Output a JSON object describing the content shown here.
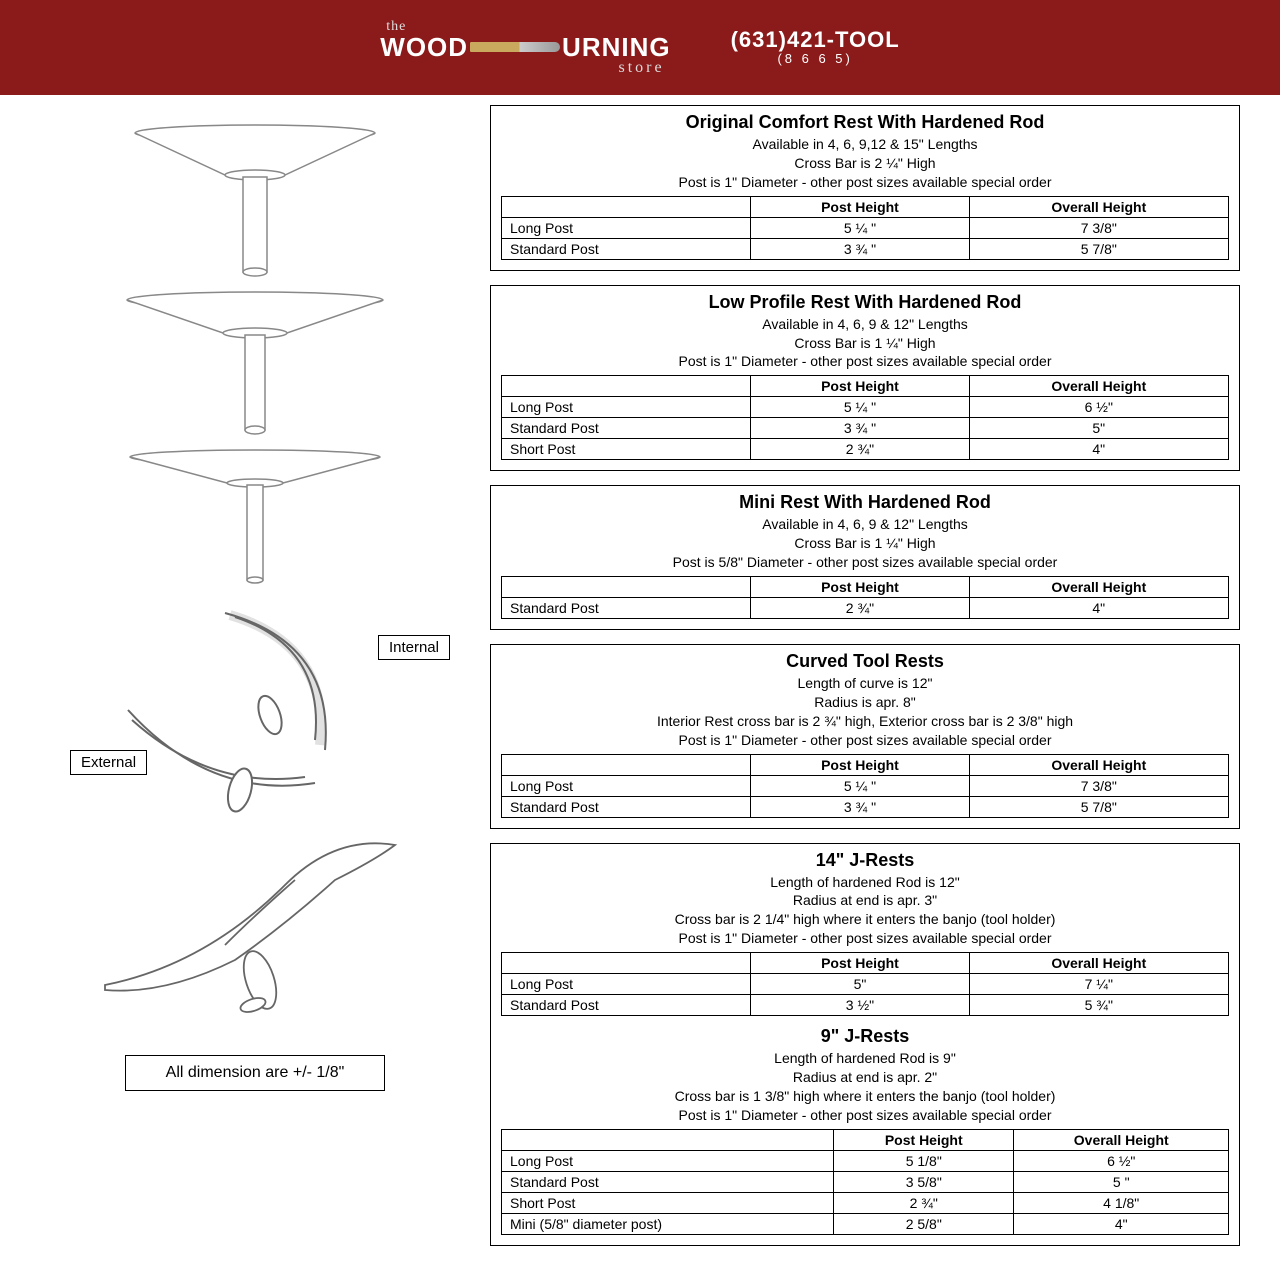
{
  "header": {
    "logo_the": "the",
    "logo_word1": "WOOD",
    "logo_word2": "URNING",
    "logo_store": "store",
    "phone": "(631)421-TOOL",
    "phone_sub": "(8 6 6 5)",
    "bg_color": "#8b1a1a"
  },
  "left": {
    "internal_label": "Internal",
    "external_label": "External",
    "dims_note": "All dimension are +/- 1/8\""
  },
  "boxes": [
    {
      "title": "Original Comfort Rest With Hardened Rod",
      "subs": [
        "Available in 4, 6, 9,12 & 15\" Lengths",
        "Cross Bar is 2 ¼\" High",
        "Post is 1\" Diameter - other post sizes available special order"
      ],
      "cols": [
        "",
        "Post Height",
        "Overall Height"
      ],
      "rows": [
        [
          "Long Post",
          "5 ¼ \"",
          "7 3/8\""
        ],
        [
          "Standard Post",
          "3 ¾ \"",
          "5 7/8\""
        ]
      ]
    },
    {
      "title": "Low Profile Rest With Hardened Rod",
      "subs": [
        "Available in 4, 6, 9 & 12\" Lengths",
        "Cross Bar is 1 ¼\" High",
        "Post is 1\" Diameter - other post sizes available special order"
      ],
      "cols": [
        "",
        "Post Height",
        "Overall Height"
      ],
      "rows": [
        [
          "Long Post",
          "5 ¼ \"",
          "6 ½\""
        ],
        [
          "Standard Post",
          "3 ¾ \"",
          "5\""
        ],
        [
          "Short Post",
          "2 ¾\"",
          "4\""
        ]
      ]
    },
    {
      "title": "Mini Rest With Hardened Rod",
      "subs": [
        "Available in 4, 6, 9 & 12\" Lengths",
        "Cross Bar is 1 ¼\" High",
        "Post is 5/8\" Diameter - other post sizes available special order"
      ],
      "cols": [
        "",
        "Post Height",
        "Overall Height"
      ],
      "rows": [
        [
          "Standard Post",
          "2 ¾\"",
          "4\""
        ]
      ]
    },
    {
      "title": "Curved Tool Rests",
      "subs": [
        "Length of curve is 12\"",
        "Radius is apr. 8\"",
        "Interior Rest cross bar is 2 ¾\" high, Exterior cross bar is 2 3/8\" high",
        "Post is 1\" Diameter - other post sizes available special order"
      ],
      "cols": [
        "",
        "Post Height",
        "Overall Height"
      ],
      "rows": [
        [
          "Long Post",
          "5 ¼ \"",
          "7 3/8\""
        ],
        [
          "Standard Post",
          "3 ¾ \"",
          "5 7/8\""
        ]
      ]
    },
    {
      "title": "14\" J-Rests",
      "subs": [
        "Length of hardened Rod is 12\"",
        "Radius at end is apr. 3\"",
        "Cross bar is 2 1/4\" high where it enters the banjo (tool holder)",
        "Post is 1\" Diameter - other post sizes available special order"
      ],
      "cols": [
        "",
        "Post Height",
        "Overall Height"
      ],
      "rows": [
        [
          "Long Post",
          "5\"",
          "7 ¼\""
        ],
        [
          "Standard Post",
          "3 ½\"",
          "5 ¾\""
        ]
      ],
      "sub2_title": "9\" J-Rests",
      "sub2_subs": [
        "Length of hardened Rod is 9\"",
        "Radius at end is apr. 2\"",
        "Cross bar is 1 3/8\" high where it enters the banjo (tool holder)",
        "Post is 1\" Diameter - other post sizes available special order"
      ],
      "sub2_cols": [
        "",
        "Post Height",
        "Overall Height"
      ],
      "sub2_rows": [
        [
          "Long Post",
          "5 1/8\"",
          "6 ½\""
        ],
        [
          "Standard Post",
          "3 5/8\"",
          "5 \""
        ],
        [
          "Short Post",
          "2 ¾\"",
          "4 1/8\""
        ],
        [
          "Mini (5/8\" diameter post)",
          "2 5/8\"",
          "4\""
        ]
      ]
    }
  ]
}
